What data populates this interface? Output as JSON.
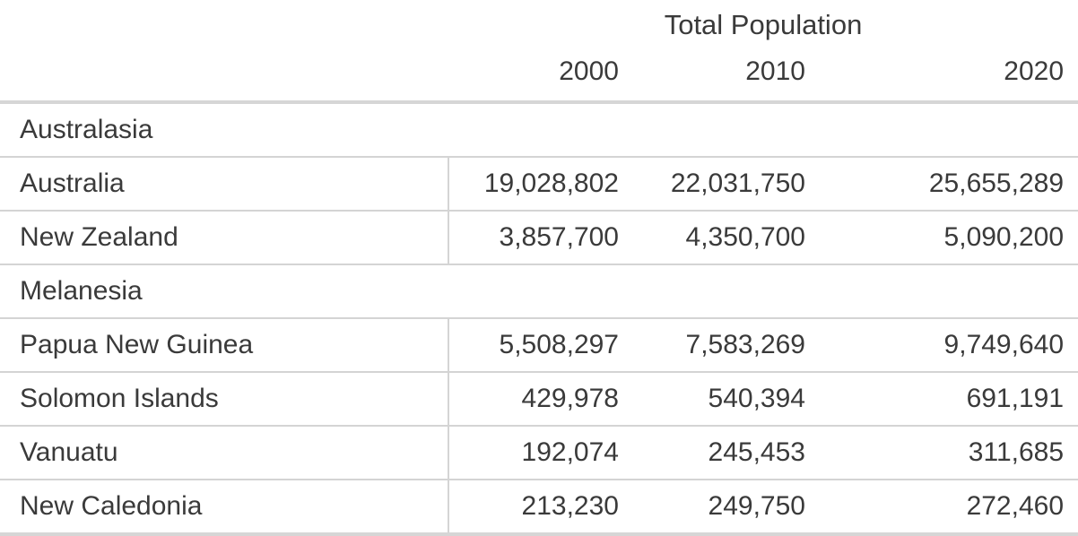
{
  "table": {
    "title": "Total Population",
    "year_headers": [
      "2000",
      "2010",
      "2020"
    ],
    "groups": [
      {
        "name": "Australasia",
        "rows": [
          {
            "country": "Australia",
            "values": [
              "19,028,802",
              "22,031,750",
              "25,655,289"
            ]
          },
          {
            "country": "New Zealand",
            "values": [
              "3,857,700",
              "4,350,700",
              "5,090,200"
            ]
          }
        ]
      },
      {
        "name": "Melanesia",
        "rows": [
          {
            "country": "Papua New Guinea",
            "values": [
              "5,508,297",
              "7,583,269",
              "9,749,640"
            ]
          },
          {
            "country": "Solomon Islands",
            "values": [
              "429,978",
              "540,394",
              "691,191"
            ]
          },
          {
            "country": "Vanuatu",
            "values": [
              "192,074",
              "245,453",
              "311,685"
            ]
          },
          {
            "country": "New Caledonia",
            "values": [
              "213,230",
              "249,750",
              "272,460"
            ]
          }
        ]
      }
    ]
  },
  "chart_data": {
    "type": "table",
    "title": "Total Population",
    "columns": [
      "2000",
      "2010",
      "2020"
    ],
    "row_groups": [
      {
        "group": "Australasia",
        "rows": [
          {
            "label": "Australia",
            "values": [
              19028802,
              22031750,
              25655289
            ]
          },
          {
            "label": "New Zealand",
            "values": [
              3857700,
              4350700,
              5090200
            ]
          }
        ]
      },
      {
        "group": "Melanesia",
        "rows": [
          {
            "label": "Papua New Guinea",
            "values": [
              5508297,
              7583269,
              9749640
            ]
          },
          {
            "label": "Solomon Islands",
            "values": [
              429978,
              540394,
              691191
            ]
          },
          {
            "label": "Vanuatu",
            "values": [
              192074,
              245453,
              311685
            ]
          },
          {
            "label": "New Caledonia",
            "values": [
              213230,
              249750,
              272460
            ]
          }
        ]
      }
    ],
    "colors": {
      "text": "#3a3a3a",
      "rule_thin": "#d4d4d4",
      "rule_thick": "#d6d6d6",
      "background": "#ffffff"
    },
    "layout": {
      "numeric_alignment": "right",
      "header_rule": "thick",
      "bottom_rule": "thick",
      "vertical_divider_after_first_column": true
    }
  }
}
